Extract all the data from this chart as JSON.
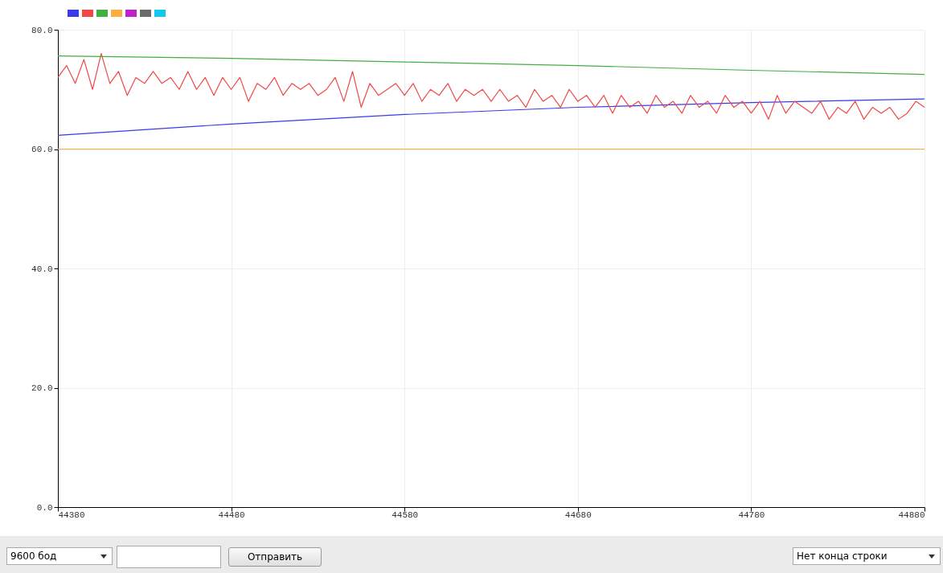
{
  "chart_data": {
    "type": "line",
    "xlim": [
      44380,
      44880
    ],
    "ylim": [
      0,
      80
    ],
    "xticks": [
      44380,
      44480,
      44580,
      44680,
      44780,
      44880
    ],
    "yticks": [
      {
        "value": 0,
        "label": "0.0"
      },
      {
        "value": 20,
        "label": "20.0"
      },
      {
        "value": 40,
        "label": "40.0"
      },
      {
        "value": 60,
        "label": "60.0"
      },
      {
        "value": 80,
        "label": "80.0"
      }
    ],
    "grid": true,
    "marker": "none",
    "line_style": "solid",
    "annotations": [
      "9600 бод",
      "Отправить",
      "Нет конца строки"
    ],
    "series": [
      {
        "color": "#3a3ae8",
        "x": [
          44380,
          44480,
          44580,
          44680,
          44780,
          44880
        ],
        "values": [
          62.3,
          64.2,
          65.8,
          67.0,
          67.8,
          68.4
        ]
      },
      {
        "color": "#f04848",
        "x": [
          44380,
          44385,
          44390,
          44395,
          44400,
          44405,
          44410,
          44415,
          44420,
          44425,
          44430,
          44435,
          44440,
          44445,
          44450,
          44455,
          44460,
          44465,
          44470,
          44475,
          44480,
          44485,
          44490,
          44495,
          44500,
          44505,
          44510,
          44515,
          44520,
          44525,
          44530,
          44535,
          44540,
          44545,
          44550,
          44555,
          44560,
          44565,
          44570,
          44575,
          44580,
          44585,
          44590,
          44595,
          44600,
          44605,
          44610,
          44615,
          44620,
          44625,
          44630,
          44635,
          44640,
          44645,
          44650,
          44655,
          44660,
          44665,
          44670,
          44675,
          44680,
          44685,
          44690,
          44695,
          44700,
          44705,
          44710,
          44715,
          44720,
          44725,
          44730,
          44735,
          44740,
          44745,
          44750,
          44755,
          44760,
          44765,
          44770,
          44775,
          44780,
          44785,
          44790,
          44795,
          44800,
          44805,
          44810,
          44815,
          44820,
          44825,
          44830,
          44835,
          44840,
          44845,
          44850,
          44855,
          44860,
          44865,
          44870,
          44875,
          44880
        ],
        "values": [
          72,
          74,
          71,
          75,
          70,
          76,
          71,
          73,
          69,
          72,
          71,
          73,
          71,
          72,
          70,
          73,
          70,
          72,
          69,
          72,
          70,
          72,
          68,
          71,
          70,
          72,
          69,
          71,
          70,
          71,
          69,
          70,
          72,
          68,
          73,
          67,
          71,
          69,
          70,
          71,
          69,
          71,
          68,
          70,
          69,
          71,
          68,
          70,
          69,
          70,
          68,
          70,
          68,
          69,
          67,
          70,
          68,
          69,
          67,
          70,
          68,
          69,
          67,
          69,
          66,
          69,
          67,
          68,
          66,
          69,
          67,
          68,
          66,
          69,
          67,
          68,
          66,
          69,
          67,
          68,
          66,
          68,
          65,
          69,
          66,
          68,
          67,
          66,
          68,
          65,
          67,
          66,
          68,
          65,
          67,
          66,
          67,
          65,
          66,
          68,
          67
        ]
      },
      {
        "color": "#40b040",
        "x": [
          44380,
          44480,
          44580,
          44680,
          44780,
          44880
        ],
        "values": [
          75.6,
          75.2,
          74.6,
          74.0,
          73.2,
          72.5
        ]
      },
      {
        "color": "#f8b040",
        "x": [
          44380,
          44880
        ],
        "values": [
          60,
          60
        ]
      },
      {
        "color": "#c020c8"
      },
      {
        "color": "#6b6b6b"
      },
      {
        "color": "#10c8f0"
      }
    ]
  }
}
